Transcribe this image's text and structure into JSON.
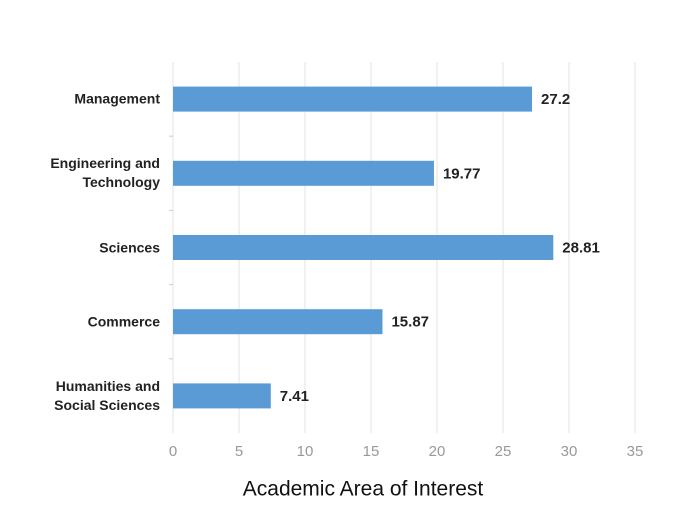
{
  "chart_data": {
    "type": "bar",
    "orientation": "horizontal",
    "categories": [
      "Management",
      "Engineering and\nTechnology",
      "Sciences",
      "Commerce",
      "Humanities and\nSocial Sciences"
    ],
    "values": [
      27.2,
      19.77,
      28.81,
      15.87,
      7.41
    ],
    "color": "#5b9bd5",
    "xlabel": "Academic Area of Interest",
    "xlim": [
      0,
      35
    ],
    "xticks": [
      0,
      5,
      10,
      15,
      20,
      25,
      30,
      35
    ],
    "grid": true
  }
}
